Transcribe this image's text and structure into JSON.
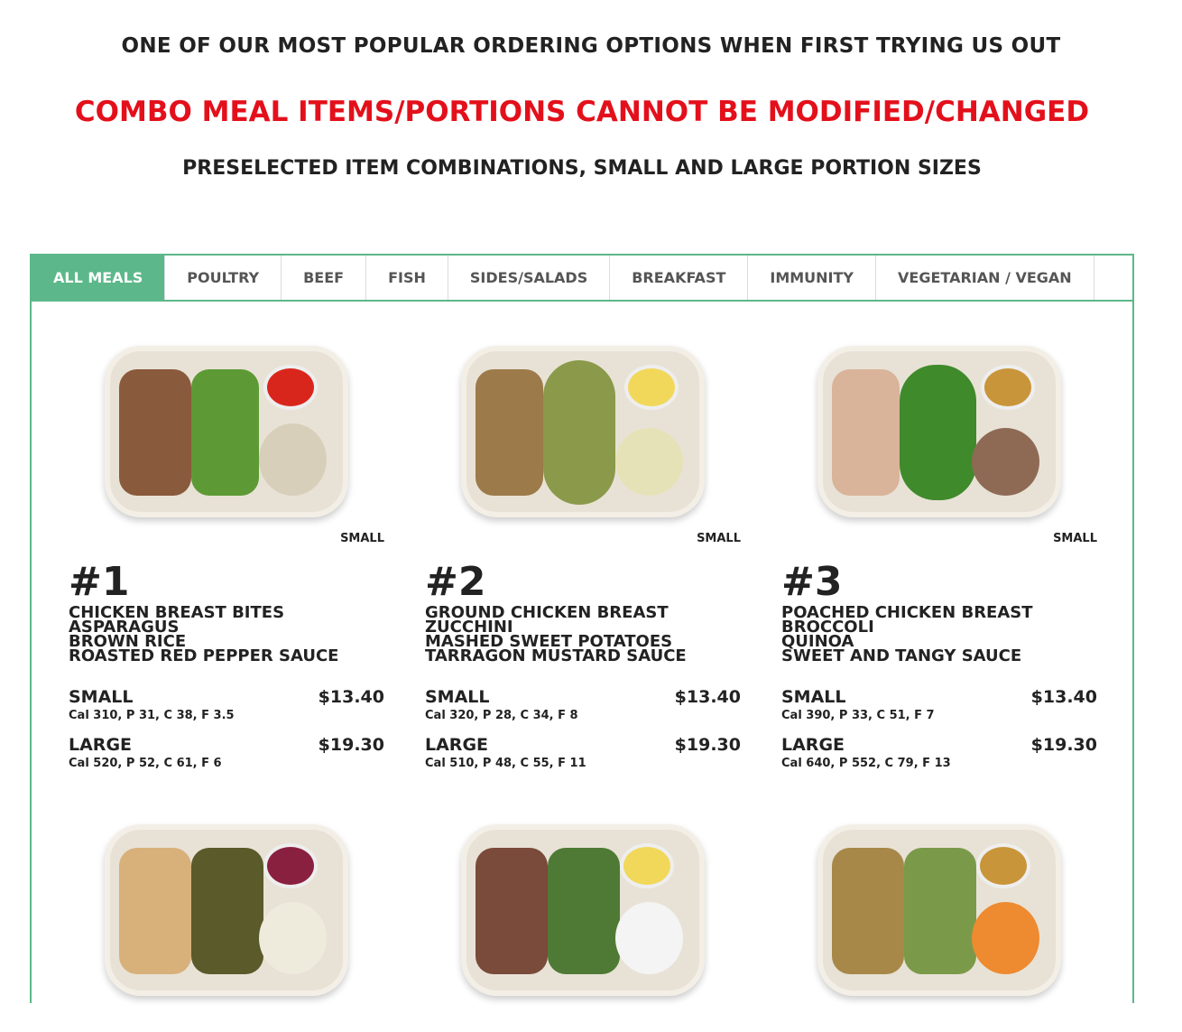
{
  "header": {
    "line1": "ONE OF OUR MOST POPULAR ORDERING OPTIONS WHEN FIRST TRYING US OUT",
    "line2": "COMBO MEAL ITEMS/PORTIONS CANNOT BE MODIFIED/CHANGED",
    "line3": "PRESELECTED ITEM COMBINATIONS, SMALL AND LARGE PORTION SIZES"
  },
  "colors": {
    "accent": "#5cb88a",
    "warning": "#e3101b"
  },
  "tabs": [
    "ALL MEALS",
    "POULTRY",
    "BEEF",
    "FISH",
    "SIDES/SALADS",
    "BREAKFAST",
    "IMMUNITY",
    "VEGETARIAN / VEGAN"
  ],
  "meals": [
    {
      "tag": "SMALL",
      "number": "#1",
      "items": [
        "CHICKEN BREAST BITES",
        "ASPARAGUS",
        "BROWN RICE",
        "ROASTED RED PEPPER SAUCE"
      ],
      "small_label": "SMALL",
      "small_price": "$13.40",
      "small_nutrition": "Cal 310, P 31, C 38, F 3.5",
      "large_label": "LARGE",
      "large_price": "$19.30",
      "large_nutrition": "Cal 520, P 52, C 61, F 6"
    },
    {
      "tag": "SMALL",
      "number": "#2",
      "items": [
        "GROUND CHICKEN BREAST",
        "ZUCCHINI",
        "MASHED SWEET POTATOES",
        "TARRAGON MUSTARD SAUCE"
      ],
      "small_label": "SMALL",
      "small_price": "$13.40",
      "small_nutrition": "Cal 320, P 28, C 34, F 8",
      "large_label": "LARGE",
      "large_price": "$19.30",
      "large_nutrition": "Cal 510, P 48, C 55, F 11"
    },
    {
      "tag": "SMALL",
      "number": "#3",
      "items": [
        "POACHED CHICKEN BREAST",
        "BROCCOLI",
        "QUINOA",
        "SWEET AND TANGY SAUCE"
      ],
      "small_label": "SMALL",
      "small_price": "$13.40",
      "small_nutrition": "Cal 390, P 33, C 51, F 7",
      "large_label": "LARGE",
      "large_price": "$19.30",
      "large_nutrition": "Cal 640, P 552, C 79, F 13"
    }
  ]
}
